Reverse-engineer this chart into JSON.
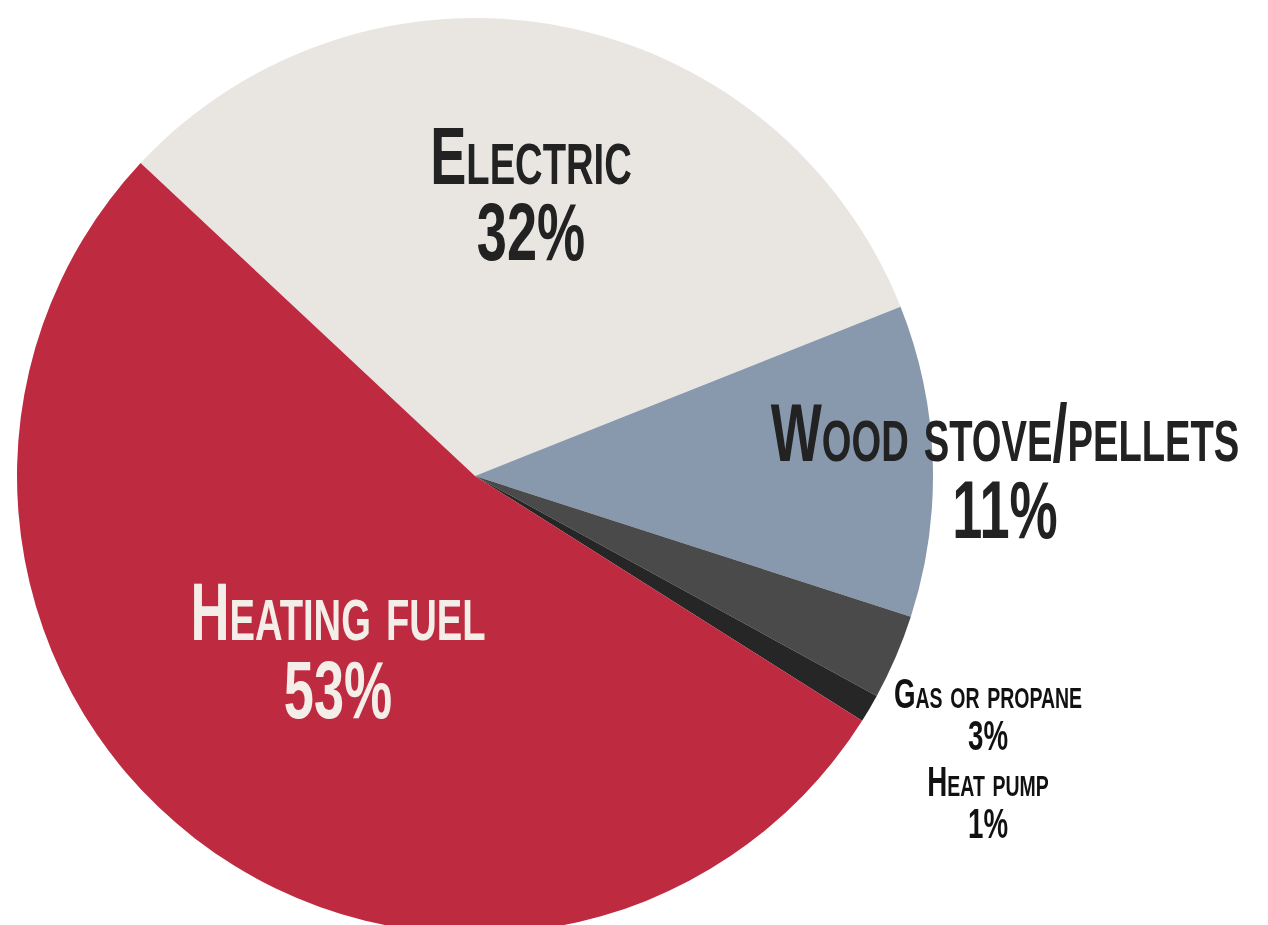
{
  "chart_data": {
    "type": "pie",
    "categories": [
      "Electric",
      "Wood stove/pellets",
      "Gas or propane",
      "Heat pump",
      "Heating fuel"
    ],
    "values": [
      32,
      11,
      3,
      1,
      53
    ],
    "colors": [
      "#e9e6e1",
      "#8899ae",
      "#4a4a4a",
      "#262626",
      "#be2a40"
    ],
    "value_labels": [
      "32%",
      "11%",
      "3%",
      "1%",
      "53%"
    ]
  }
}
